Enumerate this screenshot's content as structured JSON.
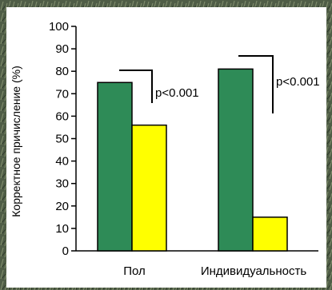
{
  "chart_data": {
    "type": "bar",
    "categories": [
      "Пол",
      "Индивидуальность"
    ],
    "series": [
      {
        "values": [
          75,
          81
        ],
        "color": "#2e8b57"
      },
      {
        "values": [
          56,
          15
        ],
        "color": "#ffff00"
      }
    ],
    "ylabel": "Корректное причисление (%)",
    "ylim": [
      0,
      100
    ],
    "yticks": [
      0,
      10,
      20,
      30,
      40,
      50,
      60,
      70,
      80,
      90,
      100
    ],
    "annotations": [
      "p<0.001",
      "p<0.001"
    ],
    "grid": false
  }
}
